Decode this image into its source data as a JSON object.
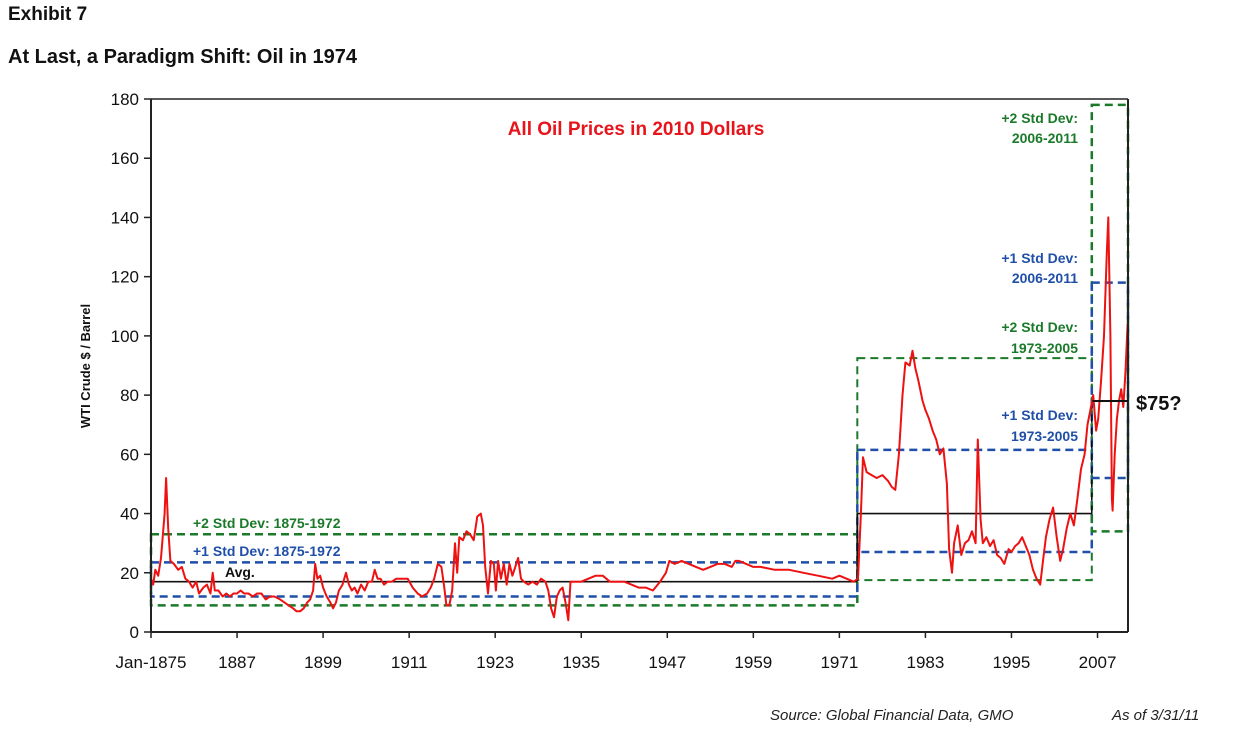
{
  "header": {
    "exhibit": "Exhibit 7",
    "title": "At Last, a Paradigm Shift:  Oil in 1974"
  },
  "footer": {
    "source": "Source:  Global Financial Data, GMO",
    "as_of": "As of 3/31/11"
  },
  "colors": {
    "price": "#ee1111",
    "plus2": "#1a7a2a",
    "plus1": "#1f4fa8",
    "avg": "#111111",
    "subtitle": "#e8141c"
  },
  "chart_data": {
    "type": "line",
    "title": "All Oil Prices in 2010 Dollars",
    "xlabel": "",
    "ylabel": "WTI Crude $ / Barrel",
    "xlim": [
      1875,
      2011.25
    ],
    "ylim": [
      0,
      180
    ],
    "yticks": [
      0,
      20,
      40,
      60,
      80,
      100,
      120,
      140,
      160,
      180
    ],
    "xticks": [
      {
        "year": 1875,
        "label": "Jan-1875"
      },
      {
        "year": 1887,
        "label": "1887"
      },
      {
        "year": 1899,
        "label": "1899"
      },
      {
        "year": 1911,
        "label": "1911"
      },
      {
        "year": 1923,
        "label": "1923"
      },
      {
        "year": 1935,
        "label": "1935"
      },
      {
        "year": 1947,
        "label": "1947"
      },
      {
        "year": 1959,
        "label": "1959"
      },
      {
        "year": 1971,
        "label": "1971"
      },
      {
        "year": 1983,
        "label": "1983"
      },
      {
        "year": 1995,
        "label": "1995"
      },
      {
        "year": 2007,
        "label": "2007"
      }
    ],
    "grid": false,
    "series": [
      {
        "name": "WTI Crude (2010 $)",
        "points": [
          [
            1875.0,
            18
          ],
          [
            1875.3,
            16
          ],
          [
            1875.6,
            21
          ],
          [
            1876.0,
            19
          ],
          [
            1876.4,
            25
          ],
          [
            1876.9,
            40
          ],
          [
            1877.1,
            52
          ],
          [
            1877.4,
            35
          ],
          [
            1877.7,
            24
          ],
          [
            1878.2,
            23
          ],
          [
            1878.8,
            21
          ],
          [
            1879.3,
            22
          ],
          [
            1879.8,
            18
          ],
          [
            1880.3,
            17
          ],
          [
            1880.8,
            15
          ],
          [
            1881.3,
            17
          ],
          [
            1881.7,
            13
          ],
          [
            1882.3,
            15
          ],
          [
            1882.8,
            16
          ],
          [
            1883.3,
            13
          ],
          [
            1883.6,
            20
          ],
          [
            1883.9,
            14
          ],
          [
            1884.4,
            14
          ],
          [
            1885.0,
            12
          ],
          [
            1885.5,
            13
          ],
          [
            1886.0,
            12
          ],
          [
            1886.5,
            13
          ],
          [
            1887.0,
            13
          ],
          [
            1887.5,
            14
          ],
          [
            1888.0,
            13
          ],
          [
            1888.6,
            13
          ],
          [
            1889.2,
            12
          ],
          [
            1889.8,
            13
          ],
          [
            1890.4,
            13
          ],
          [
            1891.0,
            11
          ],
          [
            1891.6,
            12
          ],
          [
            1892.2,
            12
          ],
          [
            1893.0,
            11
          ],
          [
            1893.6,
            10
          ],
          [
            1894.2,
            9
          ],
          [
            1894.8,
            8
          ],
          [
            1895.3,
            7
          ],
          [
            1895.8,
            7
          ],
          [
            1896.3,
            8
          ],
          [
            1896.8,
            10
          ],
          [
            1897.2,
            11
          ],
          [
            1897.6,
            14
          ],
          [
            1897.9,
            23
          ],
          [
            1898.2,
            18
          ],
          [
            1898.6,
            19
          ],
          [
            1899.0,
            15
          ],
          [
            1899.5,
            12
          ],
          [
            1900.0,
            10
          ],
          [
            1900.4,
            8
          ],
          [
            1900.8,
            10
          ],
          [
            1901.2,
            14
          ],
          [
            1901.7,
            16
          ],
          [
            1902.2,
            20
          ],
          [
            1902.6,
            16
          ],
          [
            1903.0,
            14
          ],
          [
            1903.4,
            15
          ],
          [
            1903.8,
            13
          ],
          [
            1904.3,
            16
          ],
          [
            1904.8,
            14
          ],
          [
            1905.3,
            17
          ],
          [
            1905.8,
            17
          ],
          [
            1906.2,
            21
          ],
          [
            1906.6,
            18
          ],
          [
            1907.0,
            18
          ],
          [
            1907.5,
            16
          ],
          [
            1908.0,
            17
          ],
          [
            1908.6,
            17
          ],
          [
            1909.2,
            18
          ],
          [
            1910.0,
            18
          ],
          [
            1910.8,
            18
          ],
          [
            1911.5,
            15
          ],
          [
            1912.2,
            13
          ],
          [
            1912.8,
            12
          ],
          [
            1913.5,
            13
          ],
          [
            1914.0,
            15
          ],
          [
            1914.5,
            18
          ],
          [
            1915.0,
            23
          ],
          [
            1915.5,
            22
          ],
          [
            1915.9,
            15
          ],
          [
            1916.2,
            9
          ],
          [
            1916.6,
            9
          ],
          [
            1917.0,
            14
          ],
          [
            1917.4,
            30
          ],
          [
            1917.7,
            20
          ],
          [
            1918.0,
            32
          ],
          [
            1918.5,
            31
          ],
          [
            1919.0,
            34
          ],
          [
            1919.5,
            33
          ],
          [
            1920.0,
            31
          ],
          [
            1920.5,
            39
          ],
          [
            1921.0,
            40
          ],
          [
            1921.3,
            36
          ],
          [
            1921.6,
            22
          ],
          [
            1922.0,
            13
          ],
          [
            1922.4,
            24
          ],
          [
            1922.8,
            23
          ],
          [
            1923.1,
            14
          ],
          [
            1923.4,
            24
          ],
          [
            1923.8,
            18
          ],
          [
            1924.2,
            23
          ],
          [
            1924.6,
            16
          ],
          [
            1925.0,
            23
          ],
          [
            1925.4,
            19
          ],
          [
            1925.8,
            22
          ],
          [
            1926.2,
            25
          ],
          [
            1926.6,
            18
          ],
          [
            1927.0,
            17
          ],
          [
            1927.6,
            16
          ],
          [
            1928.2,
            17
          ],
          [
            1928.8,
            16
          ],
          [
            1929.4,
            18
          ],
          [
            1930.0,
            17
          ],
          [
            1930.4,
            14
          ],
          [
            1930.8,
            8
          ],
          [
            1931.2,
            5
          ],
          [
            1931.6,
            12
          ],
          [
            1932.0,
            14
          ],
          [
            1932.4,
            15
          ],
          [
            1932.8,
            10
          ],
          [
            1933.2,
            4
          ],
          [
            1933.5,
            17
          ],
          [
            1934.0,
            17
          ],
          [
            1935.0,
            17
          ],
          [
            1936.0,
            18
          ],
          [
            1937.0,
            19
          ],
          [
            1938.0,
            19
          ],
          [
            1939.0,
            17
          ],
          [
            1940.0,
            17
          ],
          [
            1941.0,
            17
          ],
          [
            1942.0,
            16
          ],
          [
            1943.0,
            15
          ],
          [
            1944.0,
            15
          ],
          [
            1945.0,
            14
          ],
          [
            1946.0,
            17
          ],
          [
            1946.8,
            20
          ],
          [
            1947.3,
            24
          ],
          [
            1948.0,
            23
          ],
          [
            1949.0,
            24
          ],
          [
            1950.0,
            23
          ],
          [
            1951.0,
            22
          ],
          [
            1952.0,
            21
          ],
          [
            1953.0,
            22
          ],
          [
            1954.0,
            23
          ],
          [
            1955.0,
            23
          ],
          [
            1956.0,
            22
          ],
          [
            1956.5,
            24
          ],
          [
            1957.0,
            24
          ],
          [
            1958.0,
            23
          ],
          [
            1959.0,
            22
          ],
          [
            1960.0,
            22
          ],
          [
            1962.0,
            21
          ],
          [
            1964.0,
            21
          ],
          [
            1966.0,
            20
          ],
          [
            1968.0,
            19
          ],
          [
            1970.0,
            18
          ],
          [
            1971.0,
            19
          ],
          [
            1972.0,
            18
          ],
          [
            1973.0,
            17
          ],
          [
            1973.6,
            18
          ],
          [
            1974.0,
            40
          ],
          [
            1974.3,
            59
          ],
          [
            1974.8,
            54
          ],
          [
            1975.5,
            53
          ],
          [
            1976.2,
            52
          ],
          [
            1977.0,
            53
          ],
          [
            1977.8,
            51
          ],
          [
            1978.3,
            49
          ],
          [
            1978.8,
            48
          ],
          [
            1979.3,
            60
          ],
          [
            1979.8,
            80
          ],
          [
            1980.2,
            91
          ],
          [
            1980.8,
            90
          ],
          [
            1981.2,
            95
          ],
          [
            1981.6,
            89
          ],
          [
            1982.0,
            85
          ],
          [
            1982.6,
            78
          ],
          [
            1983.0,
            75
          ],
          [
            1983.5,
            72
          ],
          [
            1984.0,
            68
          ],
          [
            1984.5,
            65
          ],
          [
            1985.0,
            60
          ],
          [
            1985.5,
            62
          ],
          [
            1986.0,
            50
          ],
          [
            1986.3,
            28
          ],
          [
            1986.7,
            20
          ],
          [
            1987.0,
            30
          ],
          [
            1987.5,
            36
          ],
          [
            1988.0,
            26
          ],
          [
            1988.5,
            30
          ],
          [
            1989.0,
            31
          ],
          [
            1989.5,
            34
          ],
          [
            1990.0,
            30
          ],
          [
            1990.3,
            65
          ],
          [
            1990.7,
            38
          ],
          [
            1991.0,
            30
          ],
          [
            1991.5,
            32
          ],
          [
            1992.0,
            29
          ],
          [
            1992.5,
            31
          ],
          [
            1993.0,
            26
          ],
          [
            1993.5,
            25
          ],
          [
            1994.0,
            23
          ],
          [
            1994.6,
            28
          ],
          [
            1995.0,
            27
          ],
          [
            1995.5,
            29
          ],
          [
            1996.0,
            30
          ],
          [
            1996.5,
            32
          ],
          [
            1997.0,
            29
          ],
          [
            1997.5,
            26
          ],
          [
            1998.0,
            21
          ],
          [
            1998.5,
            18
          ],
          [
            1999.0,
            16
          ],
          [
            1999.4,
            24
          ],
          [
            1999.8,
            32
          ],
          [
            2000.3,
            38
          ],
          [
            2000.8,
            42
          ],
          [
            2001.3,
            32
          ],
          [
            2001.8,
            24
          ],
          [
            2002.2,
            28
          ],
          [
            2002.7,
            35
          ],
          [
            2003.2,
            40
          ],
          [
            2003.7,
            36
          ],
          [
            2004.2,
            45
          ],
          [
            2004.7,
            55
          ],
          [
            2005.2,
            60
          ],
          [
            2005.6,
            70
          ],
          [
            2006.0,
            75
          ],
          [
            2006.4,
            80
          ],
          [
            2006.8,
            68
          ],
          [
            2007.1,
            72
          ],
          [
            2007.5,
            85
          ],
          [
            2007.9,
            100
          ],
          [
            2008.3,
            128
          ],
          [
            2008.5,
            140
          ],
          [
            2008.8,
            100
          ],
          [
            2009.0,
            45
          ],
          [
            2009.1,
            41
          ],
          [
            2009.4,
            60
          ],
          [
            2009.7,
            72
          ],
          [
            2010.0,
            78
          ],
          [
            2010.3,
            82
          ],
          [
            2010.6,
            76
          ],
          [
            2010.9,
            88
          ],
          [
            2011.2,
            104
          ]
        ]
      }
    ],
    "regimes": [
      {
        "period": "1875-1972",
        "start": 1875,
        "end": 1973.5,
        "avg": 17,
        "plus1": 23.5,
        "minus1": 12,
        "plus2": 33,
        "minus2": 9
      },
      {
        "period": "1973-2005",
        "start": 1973.5,
        "end": 2006.2,
        "avg": 40,
        "plus1": 61.5,
        "minus1": 27,
        "plus2": 92.5,
        "minus2": 17.5
      },
      {
        "period": "2006-2011",
        "start": 2006.2,
        "end": 2011.25,
        "avg": 78,
        "plus1": 118,
        "minus1": 52,
        "plus2": 178,
        "minus2": 34
      }
    ],
    "annotations": [
      {
        "text": "+2 Std Dev:  1875-1972",
        "color": "plus2"
      },
      {
        "text": "+1 Std Dev:  1875-1972",
        "color": "plus1"
      },
      {
        "text": "Avg.",
        "color": "avg"
      },
      {
        "text": "+2 Std Dev:",
        "text2": "2006-2011",
        "color": "plus2"
      },
      {
        "text": "+1 Std Dev:",
        "text2": "2006-2011",
        "color": "plus1"
      },
      {
        "text": "+2 Std Dev:",
        "text2": "1973-2005",
        "color": "plus2"
      },
      {
        "text": "+1 Std Dev:",
        "text2": "1973-2005",
        "color": "plus1"
      },
      {
        "text": "$75?",
        "color": "avg"
      }
    ]
  }
}
